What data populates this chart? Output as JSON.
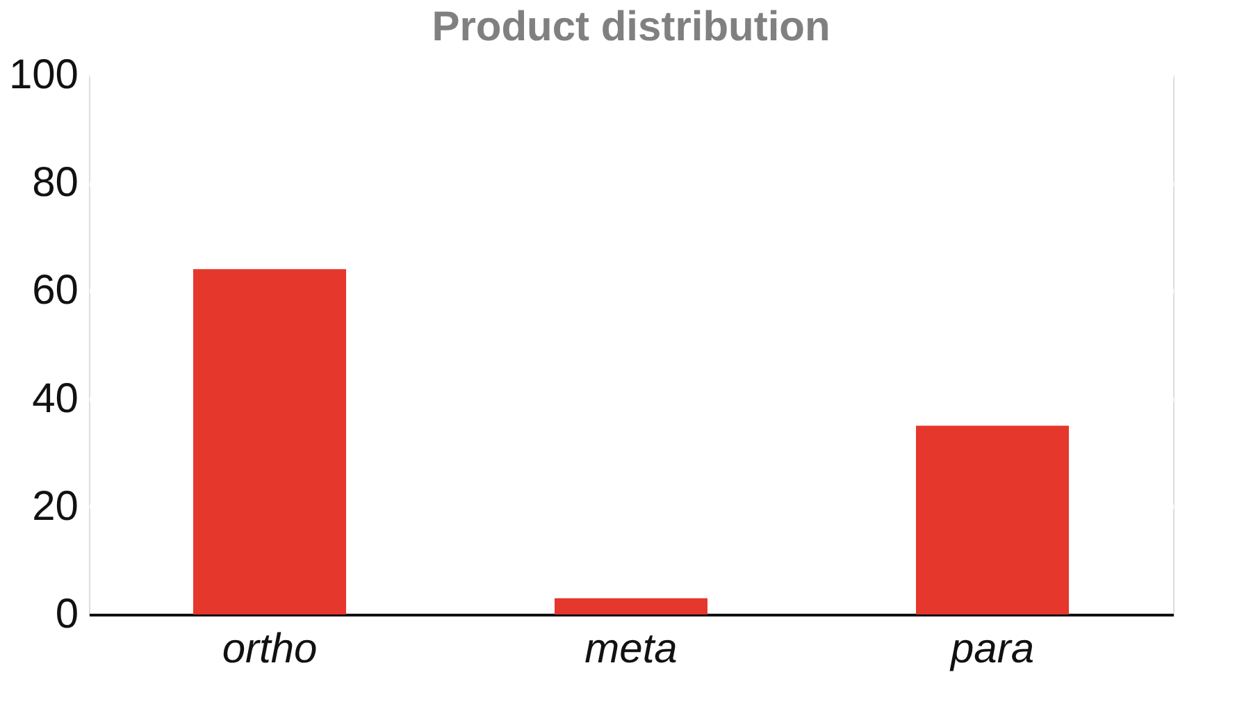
{
  "chart_data": {
    "type": "bar",
    "title": "Product distribution",
    "categories": [
      "ortho",
      "meta",
      "para"
    ],
    "values": [
      64,
      3,
      35
    ],
    "color": "#e5372c",
    "ylim": [
      0,
      100
    ],
    "yticks": [
      0,
      20,
      40,
      60,
      80,
      100
    ],
    "grid": "y"
  }
}
